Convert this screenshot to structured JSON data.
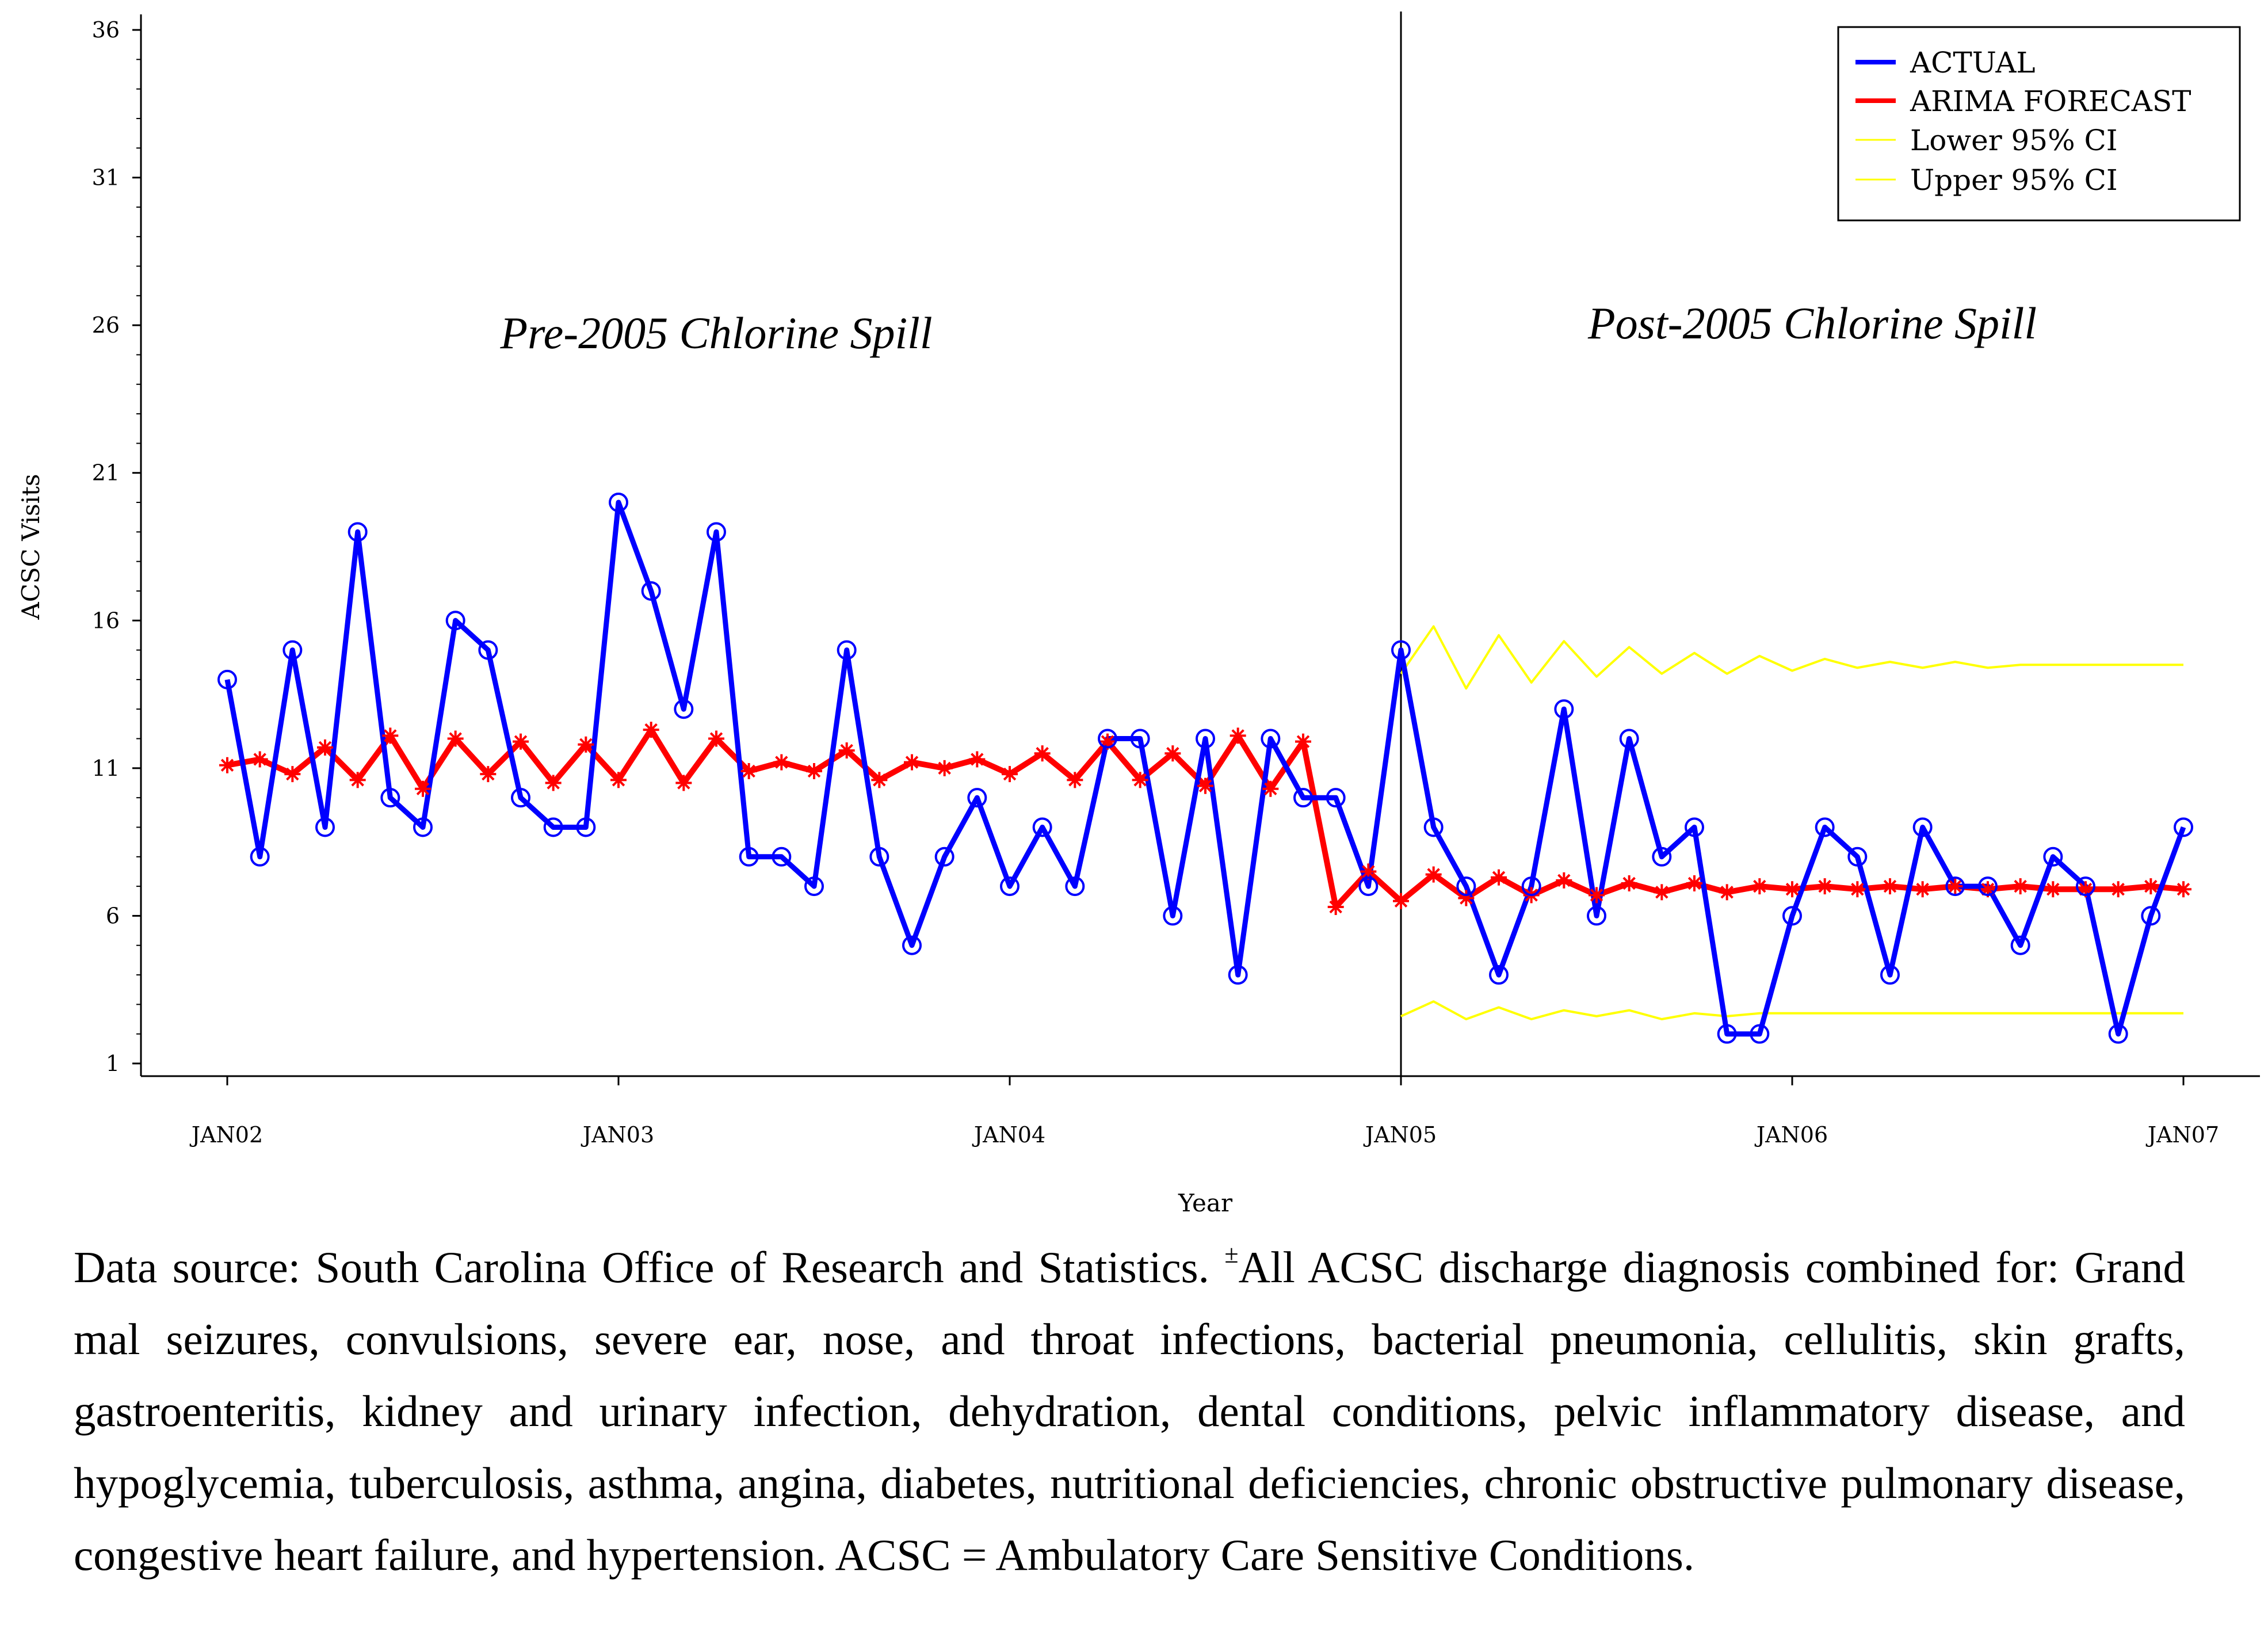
{
  "chart_data": {
    "type": "line",
    "title": "",
    "xlabel": "Year",
    "ylabel": "ACSC Visits",
    "ylim": [
      1,
      36
    ],
    "yticks": [
      1,
      6,
      11,
      16,
      21,
      26,
      31,
      36
    ],
    "ytick_labels": [
      "1",
      "6",
      "11",
      "16",
      "21",
      "26",
      "31",
      "36"
    ],
    "xticks": [
      "JAN02",
      "JAN03",
      "JAN04",
      "JAN05",
      "JAN06",
      "JAN07"
    ],
    "x_start_label": "JAN02",
    "months_total": 60,
    "intervention_month": 36,
    "regions": [
      "Pre-2005 Chlorine Spill",
      "Post-2005 Chlorine Spill"
    ],
    "legend": [
      "ACTUAL",
      "ARIMA FORECAST",
      "Lower 95% CI",
      "Upper 95% CI"
    ],
    "colors": {
      "actual": "#0000ff",
      "forecast": "#ff0000",
      "ci": "#ffff00"
    },
    "series": [
      {
        "name": "ACTUAL",
        "months": [
          0,
          1,
          2,
          3,
          4,
          5,
          6,
          7,
          8,
          9,
          10,
          11,
          12,
          13,
          14,
          15,
          16,
          17,
          18,
          19,
          20,
          21,
          22,
          23,
          24,
          25,
          26,
          27,
          28,
          29,
          30,
          31,
          32,
          33,
          34,
          35,
          36,
          37,
          38,
          39,
          40,
          41,
          42,
          43,
          44,
          45,
          46,
          47,
          48,
          49,
          50,
          51,
          52,
          53,
          54,
          55,
          56,
          57,
          58,
          59,
          60
        ],
        "values": [
          14,
          8,
          15,
          9,
          19,
          10,
          9,
          16,
          15,
          10,
          9,
          9,
          20,
          17,
          13,
          19,
          8,
          8,
          7,
          15,
          8,
          5,
          8,
          10,
          7,
          9,
          7,
          12,
          12,
          6,
          12,
          4,
          12,
          10,
          10,
          7,
          15,
          9,
          7,
          4,
          7,
          13,
          6,
          12,
          8,
          9,
          2,
          2,
          6,
          9,
          8,
          4,
          9,
          7,
          7,
          5,
          8,
          7,
          2,
          6,
          9
        ]
      },
      {
        "name": "ARIMA FORECAST",
        "months": [
          0,
          1,
          2,
          3,
          4,
          5,
          6,
          7,
          8,
          9,
          10,
          11,
          12,
          13,
          14,
          15,
          16,
          17,
          18,
          19,
          20,
          21,
          22,
          23,
          24,
          25,
          26,
          27,
          28,
          29,
          30,
          31,
          32,
          33,
          34,
          35,
          36,
          37,
          38,
          39,
          40,
          41,
          42,
          43,
          44,
          45,
          46,
          47,
          48,
          49,
          50,
          51,
          52,
          53,
          54,
          55,
          56,
          57,
          58,
          59,
          60
        ],
        "values": [
          11.1,
          11.3,
          10.8,
          11.7,
          10.6,
          12.1,
          10.3,
          12.0,
          10.8,
          11.9,
          10.5,
          11.8,
          10.6,
          12.3,
          10.5,
          12.0,
          10.9,
          11.2,
          10.9,
          11.6,
          10.6,
          11.2,
          11.0,
          11.3,
          10.8,
          11.5,
          10.6,
          11.9,
          10.6,
          11.5,
          10.4,
          12.1,
          10.3,
          11.9,
          6.3,
          7.5,
          6.5,
          7.4,
          6.6,
          7.3,
          6.7,
          7.2,
          6.7,
          7.1,
          6.8,
          7.1,
          6.8,
          7.0,
          6.9,
          7.0,
          6.9,
          7.0,
          6.9,
          7.0,
          6.9,
          7.0,
          6.9,
          6.9,
          6.9,
          7.0,
          6.9
        ]
      },
      {
        "name": "Lower 95% CI",
        "months": [
          36,
          37,
          38,
          39,
          40,
          41,
          42,
          43,
          44,
          45,
          46,
          47,
          48,
          49,
          50,
          51,
          52,
          53,
          54,
          55,
          56,
          57,
          58,
          59,
          60
        ],
        "values": [
          2.6,
          3.1,
          2.5,
          2.9,
          2.5,
          2.8,
          2.6,
          2.8,
          2.5,
          2.7,
          2.6,
          2.7,
          2.7,
          2.7,
          2.7,
          2.7,
          2.7,
          2.7,
          2.7,
          2.7,
          2.7,
          2.7,
          2.7,
          2.7,
          2.7
        ]
      },
      {
        "name": "Upper 95% CI",
        "months": [
          36,
          37,
          38,
          39,
          40,
          41,
          42,
          43,
          44,
          45,
          46,
          47,
          48,
          49,
          50,
          51,
          52,
          53,
          54,
          55,
          56,
          57,
          58,
          59,
          60
        ],
        "values": [
          14.2,
          15.8,
          13.7,
          15.5,
          13.9,
          15.3,
          14.1,
          15.1,
          14.2,
          14.9,
          14.2,
          14.8,
          14.3,
          14.7,
          14.4,
          14.6,
          14.4,
          14.6,
          14.4,
          14.5,
          14.5,
          14.5,
          14.5,
          14.5,
          14.5
        ]
      }
    ]
  },
  "caption": {
    "text_before": "Data source: South Carolina Office of Research and Statistics. ",
    "superscript": "±",
    "text_after": "All ACSC discharge diagnosis combined for: Grand mal seizures, convulsions, severe ear, nose, and throat infections, bacterial pneumonia, cellulitis, skin grafts, gastroenteritis, kidney and urinary infection, dehydration, dental conditions, pelvic inflammatory disease, and hypoglycemia, tuberculosis, asthma, angina, diabetes, nutritional deficiencies, chronic obstructive pulmonary disease, congestive heart failure, and hypertension. ACSC = Ambulatory Care Sensitive Conditions."
  }
}
